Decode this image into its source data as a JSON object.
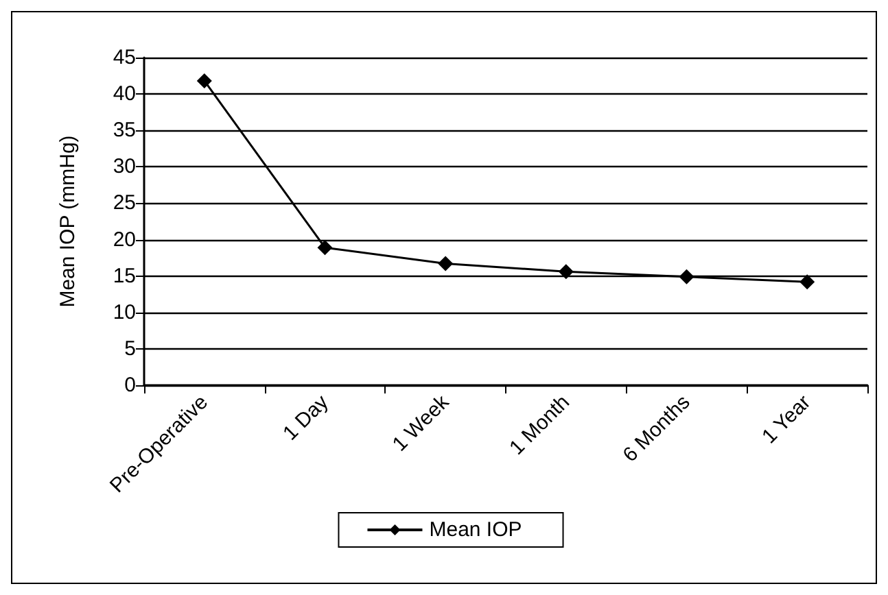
{
  "chart_data": {
    "type": "line",
    "ylabel": "Mean IOP (mmHg)",
    "categories": [
      "Pre-Operative",
      "1 Day",
      "1 Week",
      "1 Month",
      "6 Months",
      "1 Year"
    ],
    "series": [
      {
        "name": "Mean IOP",
        "color": "#000000",
        "values": [
          41.8,
          18.9,
          16.7,
          15.6,
          14.9,
          14.2
        ]
      }
    ],
    "ylim": [
      0,
      45
    ],
    "yticks": [
      0,
      5,
      10,
      15,
      20,
      25,
      30,
      35,
      40,
      45
    ],
    "grid": "y",
    "legend": "bottom",
    "marker": "diamond",
    "line_style": "solid"
  }
}
